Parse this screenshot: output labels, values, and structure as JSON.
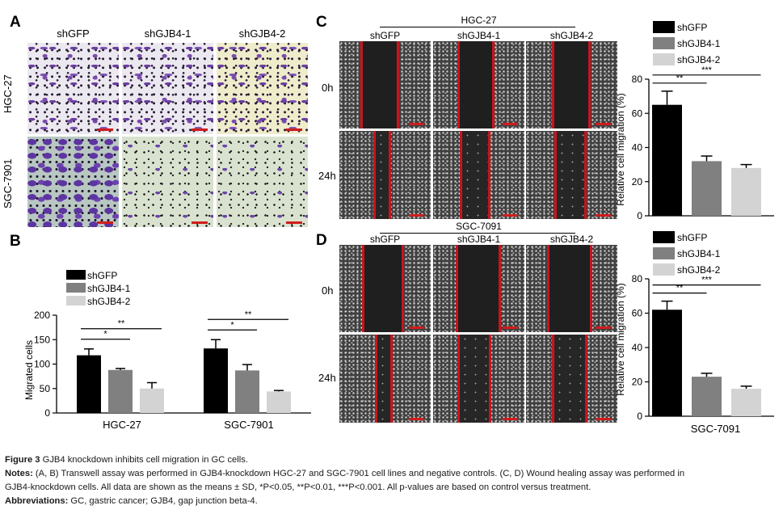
{
  "panels": {
    "A": "A",
    "B": "B",
    "C": "C",
    "D": "D"
  },
  "groups": [
    "shGFP",
    "shGJB4-1",
    "shGJB4-2"
  ],
  "colors": {
    "shGFP": "#000000",
    "shGJB4-1": "#808080",
    "shGJB4-2": "#d3d3d3",
    "scale_bar": "#d01c1c"
  },
  "panelA": {
    "rows": [
      "HGC-27",
      "SGC-7901"
    ]
  },
  "panelC": {
    "title": "HGC-27",
    "rows": [
      "0h",
      "24h"
    ]
  },
  "panelD": {
    "title": "SGC-7091",
    "rows": [
      "0h",
      "24h"
    ]
  },
  "chart_data": [
    {
      "id": "B",
      "type": "bar",
      "categories": [
        "HGC-27",
        "SGC-7901"
      ],
      "series": [
        {
          "name": "shGFP",
          "values": [
            118,
            132
          ],
          "errors": [
            13,
            18
          ]
        },
        {
          "name": "shGJB4-1",
          "values": [
            88,
            87
          ],
          "errors": [
            3,
            12
          ]
        },
        {
          "name": "shGJB4-2",
          "values": [
            50,
            44
          ],
          "errors": [
            12,
            2
          ]
        }
      ],
      "ylabel": "Migrated cells",
      "ylim": [
        0,
        200
      ],
      "yticks": [
        0,
        50,
        100,
        150,
        200
      ],
      "significance": [
        {
          "category": "HGC-27",
          "from": 0,
          "to": 1,
          "label": "*"
        },
        {
          "category": "HGC-27",
          "from": 0,
          "to": 2,
          "label": "**"
        },
        {
          "category": "SGC-7901",
          "from": 0,
          "to": 1,
          "label": "*"
        },
        {
          "category": "SGC-7901",
          "from": 0,
          "to": 2,
          "label": "**"
        }
      ],
      "legend": "top-left"
    },
    {
      "id": "C",
      "type": "bar",
      "categories": [
        "shGFP",
        "shGJB4-1",
        "shGJB4-2"
      ],
      "values": [
        65,
        32,
        28
      ],
      "errors": [
        8,
        3,
        2
      ],
      "xlabel": "HGC-27",
      "ylabel": "Relative cell migration (%)",
      "ylim": [
        0,
        80
      ],
      "yticks": [
        0,
        20,
        40,
        60,
        80
      ],
      "significance": [
        {
          "from": 0,
          "to": 1,
          "label": "**"
        },
        {
          "from": 0,
          "to": 2,
          "label": "***"
        }
      ],
      "legend": "top"
    },
    {
      "id": "D",
      "type": "bar",
      "categories": [
        "shGFP",
        "shGJB4-1",
        "shGJB4-2"
      ],
      "values": [
        62,
        23,
        16
      ],
      "errors": [
        5,
        2,
        1.5
      ],
      "xlabel": "SGC-7091",
      "ylabel": "Relative cell migration (%)",
      "ylim": [
        0,
        80
      ],
      "yticks": [
        0,
        20,
        40,
        60,
        80
      ],
      "significance": [
        {
          "from": 0,
          "to": 1,
          "label": "**"
        },
        {
          "from": 0,
          "to": 2,
          "label": "***"
        }
      ],
      "legend": "top"
    }
  ],
  "caption": {
    "figure_label": "Figure 3",
    "title": " GJB4 knockdown inhibits cell migration in GC cells.",
    "notes_label": "Notes:",
    "notes_line1": " (A, B) Transwell assay was performed in GJB4-knockdown HGC-27 and SGC-7901 cell lines and negative controls. (C, D) Wound healing assay was performed in",
    "notes_line2": "GJB4-knockdown cells. All data are shown as the means ± SD, *P<0.05, **P<0.01, ***P<0.001. All p-values are based on control versus treatment.",
    "abbrev_label": "Abbreviations:",
    "abbrev_text": " GC, gastric cancer; GJB4, gap junction beta-4."
  }
}
